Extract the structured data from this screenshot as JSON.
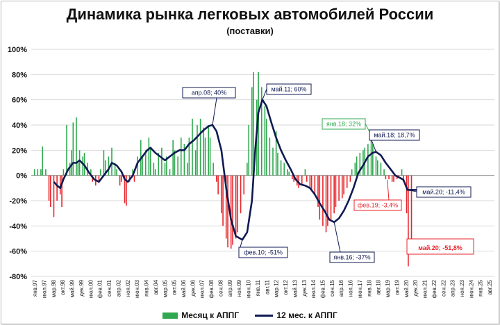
{
  "title": "Динамика рынка легковых автомобилей России",
  "subtitle": "(поставки)",
  "colors": {
    "bar_positive": "#2fa84f",
    "bar_negative": "#e8262b",
    "line": "#0f1a52",
    "annotation_navy": "#0f1a52",
    "annotation_green": "#2fa84f",
    "annotation_red": "#e8262b"
  },
  "chart_data": {
    "type": "bar",
    "ylim": [
      -80,
      100
    ],
    "y_ticks": [
      "100%",
      "80%",
      "60%",
      "40%",
      "20%",
      "0%",
      "-20%",
      "-40%",
      "-60%",
      "-80%"
    ],
    "x_tick_labels": [
      "янв.97",
      "июл.97",
      "мар.98",
      "окт.98",
      "май.99",
      "дек.99",
      "июл.00",
      "фев.01",
      "сен.01",
      "апр.02",
      "ноя.02",
      "июн.03",
      "янв.04",
      "авг.04",
      "мар.05",
      "окт.05",
      "май.06",
      "дек.06",
      "июл.07",
      "фев.08",
      "сен.08",
      "апр.09",
      "ноя.09",
      "июн.10",
      "янв.11",
      "авг.11",
      "мар.12",
      "окт.12",
      "май.13",
      "дек.13",
      "июл.14",
      "фев.15",
      "сен.15",
      "апр.16",
      "ноя.16",
      "июн.17",
      "янв.18",
      "авг.18",
      "мар.19",
      "окт.19",
      "май.20",
      "дек.20",
      "июл.21",
      "фев.22",
      "сен.22",
      "апр.23",
      "ноя.23",
      "июн.24",
      "янв.25",
      "авг.25"
    ],
    "series": [
      {
        "name": "Месяц к АППГ",
        "type": "bar",
        "points": [
          [
            1997.2,
            5
          ],
          [
            1997.4,
            5
          ],
          [
            1997.6,
            5
          ],
          [
            1997.7,
            23
          ],
          [
            1997.9,
            5
          ],
          [
            1998.1,
            -20
          ],
          [
            1998.2,
            -25
          ],
          [
            1998.4,
            -33
          ],
          [
            1998.6,
            -20
          ],
          [
            1998.8,
            -15
          ],
          [
            1998.9,
            -25
          ],
          [
            1999.0,
            5
          ],
          [
            1999.2,
            40
          ],
          [
            1999.4,
            10
          ],
          [
            1999.5,
            20
          ],
          [
            1999.6,
            42
          ],
          [
            1999.8,
            46
          ],
          [
            1999.9,
            10
          ],
          [
            2000.0,
            20
          ],
          [
            2000.2,
            15
          ],
          [
            2000.3,
            18
          ],
          [
            2000.5,
            10
          ],
          [
            2000.7,
            5
          ],
          [
            2000.8,
            -5
          ],
          [
            2001.0,
            -8
          ],
          [
            2001.2,
            -5
          ],
          [
            2001.3,
            5
          ],
          [
            2001.5,
            20
          ],
          [
            2001.6,
            12
          ],
          [
            2001.8,
            15
          ],
          [
            2002.0,
            22
          ],
          [
            2002.2,
            10
          ],
          [
            2002.3,
            5
          ],
          [
            2002.5,
            -8
          ],
          [
            2002.6,
            -5
          ],
          [
            2002.8,
            -22
          ],
          [
            2002.9,
            -24
          ],
          [
            2003.1,
            -5
          ],
          [
            2003.3,
            5
          ],
          [
            2003.4,
            -5
          ],
          [
            2003.6,
            15
          ],
          [
            2003.8,
            28
          ],
          [
            2003.9,
            15
          ],
          [
            2004.1,
            20
          ],
          [
            2004.3,
            30
          ],
          [
            2004.4,
            22
          ],
          [
            2004.6,
            10
          ],
          [
            2004.7,
            5
          ],
          [
            2004.9,
            18
          ],
          [
            2005.1,
            22
          ],
          [
            2005.3,
            10
          ],
          [
            2005.4,
            15
          ],
          [
            2005.6,
            5
          ],
          [
            2005.8,
            28
          ],
          [
            2005.9,
            20
          ],
          [
            2006.1,
            15
          ],
          [
            2006.3,
            30
          ],
          [
            2006.5,
            25
          ],
          [
            2006.7,
            10
          ],
          [
            2006.8,
            30
          ],
          [
            2007.0,
            45
          ],
          [
            2007.2,
            20
          ],
          [
            2007.3,
            40
          ],
          [
            2007.5,
            45
          ],
          [
            2007.7,
            38
          ],
          [
            2007.8,
            30
          ],
          [
            2008.0,
            40
          ],
          [
            2008.1,
            30
          ],
          [
            2008.3,
            10
          ],
          [
            2008.5,
            -5
          ],
          [
            2008.6,
            -15
          ],
          [
            2008.8,
            -30
          ],
          [
            2008.9,
            -40
          ],
          [
            2009.1,
            -50
          ],
          [
            2009.2,
            -57
          ],
          [
            2009.4,
            -58
          ],
          [
            2009.5,
            -55
          ],
          [
            2009.7,
            -50
          ],
          [
            2009.8,
            -45
          ],
          [
            2010.0,
            -30
          ],
          [
            2010.2,
            -15
          ],
          [
            2010.4,
            10
          ],
          [
            2010.5,
            40
          ],
          [
            2010.7,
            70
          ],
          [
            2010.8,
            82
          ],
          [
            2011.0,
            60
          ],
          [
            2011.1,
            82
          ],
          [
            2011.3,
            70
          ],
          [
            2011.5,
            55
          ],
          [
            2011.6,
            45
          ],
          [
            2011.8,
            30
          ],
          [
            2012.0,
            22
          ],
          [
            2012.2,
            35
          ],
          [
            2012.3,
            18
          ],
          [
            2012.5,
            12
          ],
          [
            2012.7,
            10
          ],
          [
            2012.9,
            5
          ],
          [
            2013.0,
            3
          ],
          [
            2013.2,
            -3
          ],
          [
            2013.3,
            -5
          ],
          [
            2013.5,
            -8
          ],
          [
            2013.6,
            -10
          ],
          [
            2013.8,
            -8
          ],
          [
            2014.0,
            5
          ],
          [
            2014.1,
            -5
          ],
          [
            2014.3,
            -10
          ],
          [
            2014.4,
            -12
          ],
          [
            2014.6,
            -15
          ],
          [
            2014.8,
            -25
          ],
          [
            2014.9,
            -35
          ],
          [
            2015.1,
            -40
          ],
          [
            2015.3,
            -45
          ],
          [
            2015.4,
            -40
          ],
          [
            2015.6,
            -35
          ],
          [
            2015.8,
            -30
          ],
          [
            2015.9,
            -25
          ],
          [
            2016.1,
            -20
          ],
          [
            2016.3,
            -18
          ],
          [
            2016.4,
            -15
          ],
          [
            2016.6,
            -10
          ],
          [
            2016.8,
            -5
          ],
          [
            2016.9,
            5
          ],
          [
            2017.1,
            10
          ],
          [
            2017.2,
            15
          ],
          [
            2017.4,
            18
          ],
          [
            2017.6,
            20
          ],
          [
            2017.7,
            22
          ],
          [
            2017.9,
            25
          ],
          [
            2018.1,
            32
          ],
          [
            2018.2,
            25
          ],
          [
            2018.4,
            15
          ],
          [
            2018.5,
            12
          ],
          [
            2018.7,
            10
          ],
          [
            2018.9,
            5
          ],
          [
            2019.0,
            -3
          ],
          [
            2019.2,
            -3
          ],
          [
            2019.4,
            -5
          ],
          [
            2019.5,
            -5
          ],
          [
            2019.7,
            -3
          ],
          [
            2019.8,
            -2
          ],
          [
            2020.0,
            5
          ],
          [
            2020.1,
            -5
          ],
          [
            2020.3,
            -30
          ],
          [
            2020.4,
            -72
          ],
          [
            2020.6,
            -52
          ]
        ]
      },
      {
        "name": "12 мес. к АППГ",
        "type": "line",
        "points": [
          [
            1998.4,
            -5
          ],
          [
            1998.6,
            -8
          ],
          [
            1998.8,
            -10
          ],
          [
            1999.0,
            -3
          ],
          [
            1999.3,
            5
          ],
          [
            1999.6,
            10
          ],
          [
            1999.8,
            10
          ],
          [
            2000.0,
            12
          ],
          [
            2000.3,
            8
          ],
          [
            2000.6,
            2
          ],
          [
            2000.9,
            -3
          ],
          [
            2001.2,
            -5
          ],
          [
            2001.5,
            0
          ],
          [
            2001.8,
            5
          ],
          [
            2002.0,
            10
          ],
          [
            2002.3,
            8
          ],
          [
            2002.6,
            3
          ],
          [
            2002.8,
            -3
          ],
          [
            2003.0,
            -5
          ],
          [
            2003.3,
            0
          ],
          [
            2003.6,
            10
          ],
          [
            2003.9,
            15
          ],
          [
            2004.2,
            20
          ],
          [
            2004.4,
            22
          ],
          [
            2004.7,
            18
          ],
          [
            2005.0,
            15
          ],
          [
            2005.3,
            12
          ],
          [
            2005.6,
            15
          ],
          [
            2005.9,
            18
          ],
          [
            2006.2,
            20
          ],
          [
            2006.5,
            20
          ],
          [
            2006.8,
            25
          ],
          [
            2007.1,
            28
          ],
          [
            2007.4,
            32
          ],
          [
            2007.7,
            36
          ],
          [
            2008.0,
            39
          ],
          [
            2008.25,
            40
          ],
          [
            2008.5,
            35
          ],
          [
            2008.8,
            20
          ],
          [
            2009.1,
            -10
          ],
          [
            2009.4,
            -35
          ],
          [
            2009.7,
            -48
          ],
          [
            2010.1,
            -51
          ],
          [
            2010.4,
            -45
          ],
          [
            2010.7,
            -20
          ],
          [
            2010.9,
            20
          ],
          [
            2011.1,
            50
          ],
          [
            2011.35,
            60
          ],
          [
            2011.6,
            55
          ],
          [
            2011.9,
            42
          ],
          [
            2012.2,
            30
          ],
          [
            2012.5,
            20
          ],
          [
            2012.8,
            12
          ],
          [
            2013.1,
            5
          ],
          [
            2013.4,
            -3
          ],
          [
            2013.7,
            -7
          ],
          [
            2014.0,
            -8
          ],
          [
            2014.3,
            -10
          ],
          [
            2014.6,
            -15
          ],
          [
            2014.9,
            -22
          ],
          [
            2015.2,
            -28
          ],
          [
            2015.5,
            -35
          ],
          [
            2015.8,
            -37
          ],
          [
            2016.1,
            -34
          ],
          [
            2016.4,
            -28
          ],
          [
            2016.7,
            -20
          ],
          [
            2017.0,
            -10
          ],
          [
            2017.3,
            2
          ],
          [
            2017.6,
            8
          ],
          [
            2017.9,
            15
          ],
          [
            2018.2,
            18
          ],
          [
            2018.4,
            18.7
          ],
          [
            2018.7,
            16
          ],
          [
            2019.0,
            10
          ],
          [
            2019.3,
            5
          ],
          [
            2019.6,
            0
          ],
          [
            2019.9,
            -2
          ],
          [
            2020.1,
            -3.4
          ],
          [
            2020.35,
            -11.4
          ],
          [
            2021.0,
            -11.4
          ]
        ]
      }
    ],
    "annotations": [
      {
        "label": "апр.08; 40%",
        "x": 2008.25,
        "y": 40,
        "color": "navy"
      },
      {
        "label": "май.11; 60%",
        "x": 2011.35,
        "y": 60,
        "color": "navy"
      },
      {
        "label": "фев.10; -51%",
        "x": 2010.1,
        "y": -51,
        "color": "navy"
      },
      {
        "label": "янв.16; -37%",
        "x": 2015.8,
        "y": -37,
        "color": "navy"
      },
      {
        "label": "янв.18; 32%",
        "x": 2018.1,
        "y": 32,
        "color": "green"
      },
      {
        "label": "май.18; 18,7%",
        "x": 2018.4,
        "y": 18.7,
        "color": "navy"
      },
      {
        "label": "фев.19; -3,4%",
        "x": 2019.1,
        "y": -3.4,
        "color": "red"
      },
      {
        "label": "май.20; -11,4%",
        "x": 2020.35,
        "y": -11.4,
        "color": "navy"
      },
      {
        "label": "май.20; -51,8%",
        "x": 2020.4,
        "y": -51.8,
        "color": "red"
      }
    ]
  },
  "legend": {
    "bar_label": "Месяц к АППГ",
    "line_label": "12 мес. к АППГ"
  }
}
